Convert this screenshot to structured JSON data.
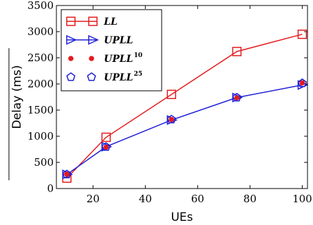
{
  "chart_data": {
    "type": "line",
    "xlabel": "UEs",
    "ylabel": "Delay (ms)",
    "xlim": [
      6,
      102
    ],
    "ylim": [
      0,
      3500
    ],
    "xticks": [
      20,
      40,
      60,
      80,
      100
    ],
    "yticks": [
      0,
      500,
      1000,
      1500,
      2000,
      2500,
      3000,
      3500
    ],
    "grid": false,
    "legend_position": "top-left",
    "series": [
      {
        "name": "LL",
        "sup": "",
        "marker": "square",
        "line": true,
        "color": "#e41a1c",
        "x": [
          10,
          25,
          50,
          75,
          100
        ],
        "y": [
          200,
          980,
          1800,
          2620,
          2950
        ]
      },
      {
        "name": "UPLL",
        "sup": "",
        "marker": "triangle-right",
        "line": true,
        "color": "#1f1fd6",
        "x": [
          10,
          25,
          50,
          75,
          100
        ],
        "y": [
          270,
          800,
          1310,
          1740,
          1980
        ]
      },
      {
        "name": "UPLL",
        "sup": "10",
        "marker": "dot",
        "line": false,
        "color": "#e41a1c",
        "x": [
          10,
          25,
          50,
          75,
          100
        ],
        "y": [
          275,
          790,
          1320,
          1735,
          2020
        ]
      },
      {
        "name": "UPLL",
        "sup": "25",
        "marker": "pentagon",
        "line": false,
        "color": "#1f1fd6",
        "x": [
          10,
          25,
          50,
          75,
          100
        ],
        "y": [
          270,
          795,
          1320,
          1740,
          2015
        ]
      }
    ]
  }
}
